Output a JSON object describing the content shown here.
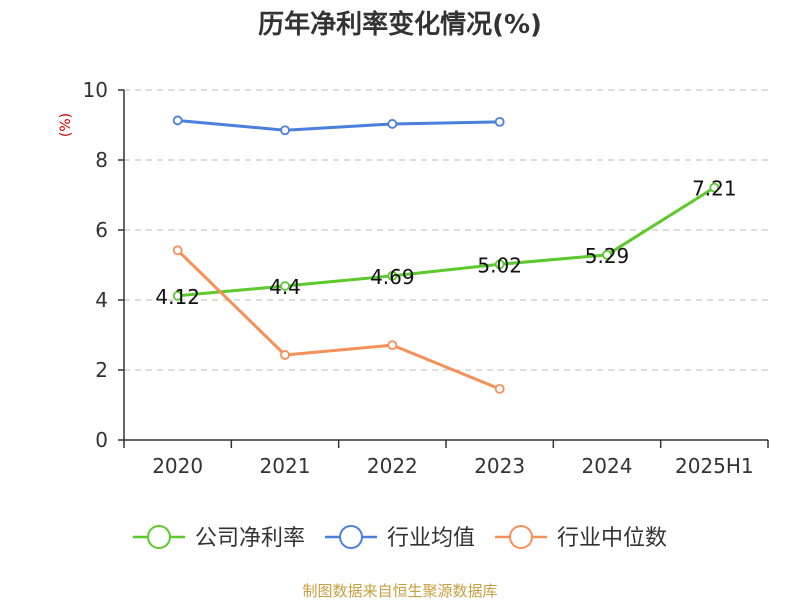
{
  "chart_data": {
    "type": "line",
    "title": "历年净利率变化情况(%)",
    "ylabel": "(%)",
    "ylim": [
      0,
      10
    ],
    "yticks": [
      "0",
      "2",
      "4",
      "6",
      "8",
      "10"
    ],
    "categories": [
      "2020",
      "2021",
      "2022",
      "2023",
      "2024",
      "2025H1"
    ],
    "grid": true,
    "legend_position": "bottom",
    "series": [
      {
        "name": "公司净利率",
        "color": "#5cc92c",
        "values": [
          4.12,
          4.4,
          4.69,
          5.02,
          5.29,
          7.21
        ],
        "labels": [
          "4.12",
          "4.4",
          "4.69",
          "5.02",
          "5.29",
          "7.21"
        ]
      },
      {
        "name": "行业均值",
        "color": "#4a80dc",
        "values": [
          9.13,
          8.85,
          9.03,
          9.09,
          null,
          null
        ]
      },
      {
        "name": "行业中位数",
        "color": "#f59058",
        "values": [
          5.42,
          2.43,
          2.71,
          1.46,
          null,
          null
        ]
      }
    ]
  },
  "colors": {
    "ylabel": "#cc0000",
    "source": "#c8a040",
    "grid": "#bbbbbb",
    "axis": "#333333"
  },
  "source": "制图数据来自恒生聚源数据库"
}
